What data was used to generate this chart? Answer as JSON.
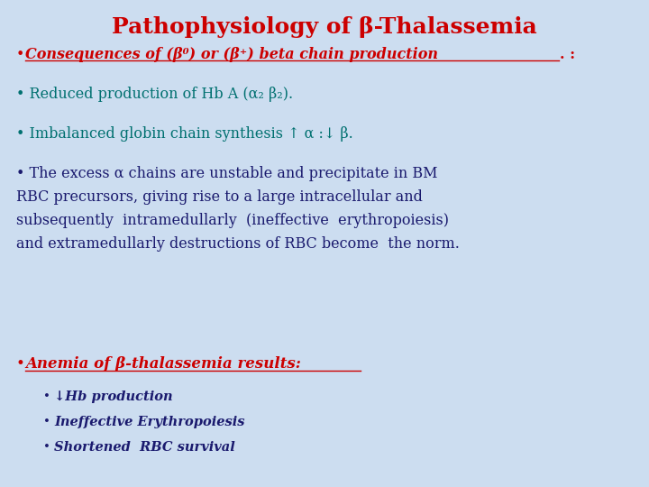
{
  "title": "Pathophysiology of β-Thalassemia",
  "title_color": "#CC0000",
  "title_fontsize": 18,
  "background_color": "#ccddf0",
  "bullet1_text": "Consequences of (β⁰) or (β⁺) beta chain production",
  "bullet1_suffix": ". :",
  "bullet1_color": "#CC0000",
  "bullet2_color": "#007070",
  "bullet3_color": "#007070",
  "bullet4_color": "#1a1a6e",
  "anemia_text": "Anemia of β-thalassemia results:",
  "anemia_color": "#CC0000",
  "sub1": "↓Hb production",
  "sub2": "Ineffective Erythropoiesis",
  "sub3": "Shortened  RBC survival",
  "sub_color": "#1a1a6e",
  "body_fontsize": 11.5,
  "anemia_fontsize": 12,
  "sub_fontsize": 10.5
}
